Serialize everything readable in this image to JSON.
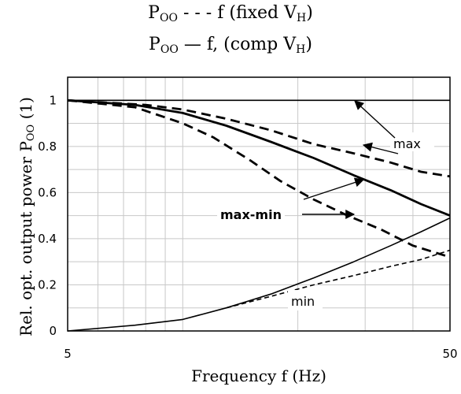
{
  "chart_data": {
    "type": "line",
    "title_lines": [
      {
        "main": "P",
        "sub": "OO",
        "rest": " - - - f (fixed V",
        "sub2": "H",
        "end": ")"
      },
      {
        "main": "P",
        "sub": "OO",
        "rest": " — f, (comp V",
        "sub2": "H",
        "end": ")"
      }
    ],
    "xlabel": "Frequency f (Hz)",
    "ylabel": {
      "main": "Rel. opt. output power P",
      "sub": "OO",
      "rest": " (1)"
    },
    "xscale": "log",
    "xlim": [
      5,
      50
    ],
    "ylim": [
      0,
      1.1
    ],
    "x_ticks": [
      5,
      50
    ],
    "x_tick_labels": [
      "5",
      "50"
    ],
    "y_ticks": [
      0,
      0.2,
      0.4,
      0.6,
      0.8,
      1
    ],
    "y_tick_labels": [
      "0",
      "0.2",
      "0.4",
      "0.6",
      "0.8",
      "1"
    ],
    "grid": true,
    "series": [
      {
        "style": "solid",
        "width": "thin",
        "x": [
          5,
          50
        ],
        "y": [
          1.0,
          1.0
        ]
      },
      {
        "style": "solid",
        "width": "thick",
        "x": [
          5,
          7.5,
          10,
          13,
          17,
          22,
          28,
          35,
          42,
          50
        ],
        "y": [
          1.0,
          0.98,
          0.945,
          0.89,
          0.82,
          0.75,
          0.675,
          0.61,
          0.55,
          0.5
        ]
      },
      {
        "style": "solid",
        "width": "thin",
        "x": [
          5,
          7.5,
          10,
          13,
          17,
          22,
          28,
          35,
          42,
          50
        ],
        "y": [
          0.0,
          0.025,
          0.05,
          0.1,
          0.16,
          0.23,
          0.3,
          0.37,
          0.43,
          0.49
        ]
      },
      {
        "style": "dashed",
        "width": "thick",
        "x": [
          5,
          8,
          10,
          13,
          17,
          22,
          28,
          35,
          42,
          50
        ],
        "y": [
          1.0,
          0.98,
          0.96,
          0.92,
          0.87,
          0.81,
          0.77,
          0.73,
          0.69,
          0.67
        ]
      },
      {
        "style": "dashed",
        "width": "thick",
        "x": [
          5,
          7.5,
          10,
          12,
          15,
          18,
          22,
          27,
          33,
          40,
          50
        ],
        "y": [
          1.0,
          0.97,
          0.9,
          0.84,
          0.74,
          0.65,
          0.57,
          0.5,
          0.44,
          0.37,
          0.32
        ]
      },
      {
        "style": "dashed",
        "width": "thin",
        "x": [
          13,
          17,
          22,
          28,
          35,
          42,
          50
        ],
        "y": [
          0.1,
          0.15,
          0.2,
          0.24,
          0.28,
          0.31,
          0.35
        ]
      }
    ],
    "annotations": [
      {
        "text": "max",
        "bold": false
      },
      {
        "text": "max-min",
        "bold": true
      },
      {
        "text": "min",
        "bold": false
      }
    ]
  }
}
